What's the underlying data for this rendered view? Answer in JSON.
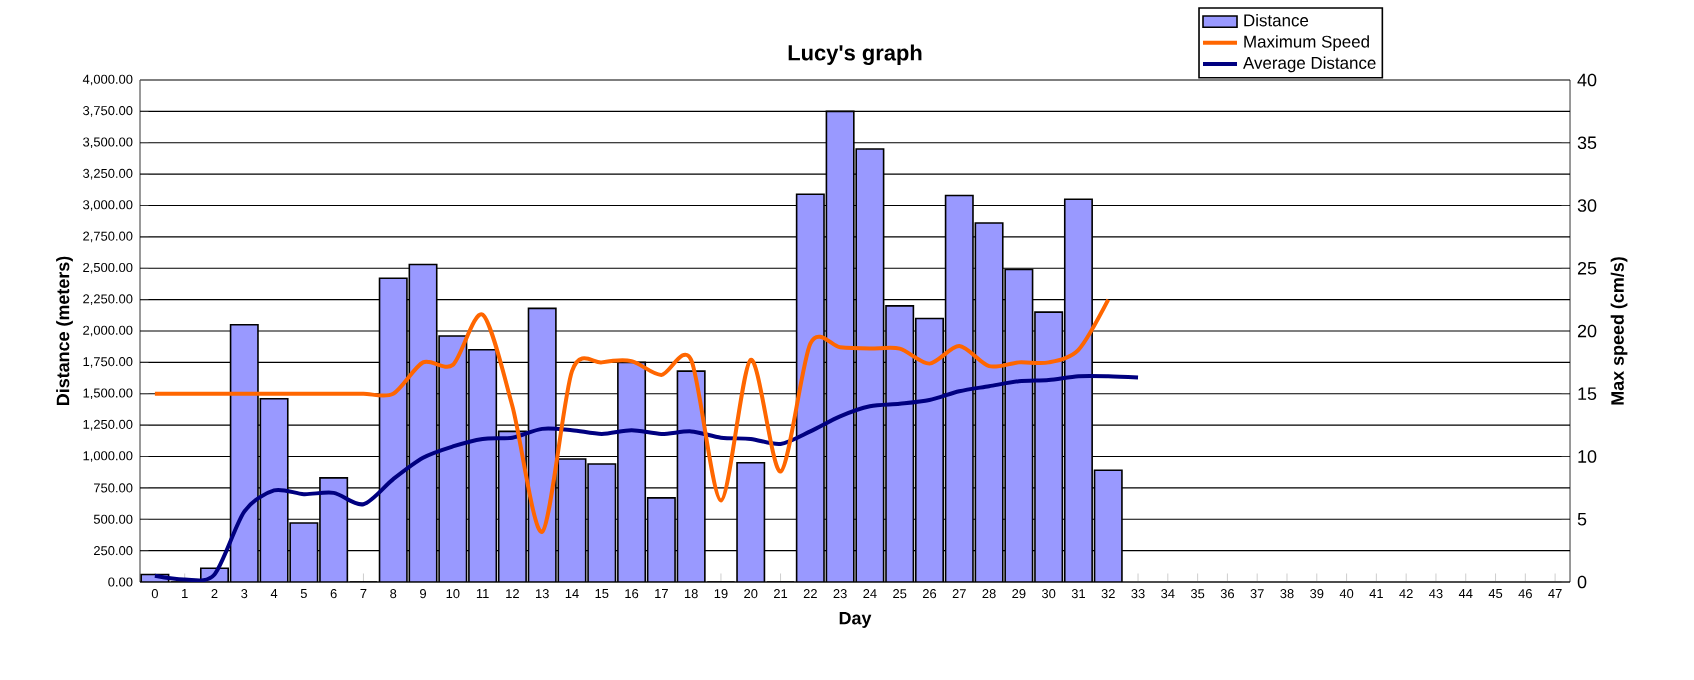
{
  "chart_data": {
    "type": "bar",
    "title": "Lucy's graph",
    "xlabel": "Day",
    "ylabel": "Distance (meters)",
    "y2label": "Max speed (cm/s)",
    "categories": [
      "0",
      "1",
      "2",
      "3",
      "4",
      "5",
      "6",
      "7",
      "8",
      "9",
      "10",
      "11",
      "12",
      "13",
      "14",
      "15",
      "16",
      "17",
      "18",
      "19",
      "20",
      "21",
      "22",
      "23",
      "24",
      "25",
      "26",
      "27",
      "28",
      "29",
      "30",
      "31",
      "32",
      "33",
      "34",
      "35",
      "36",
      "37",
      "38",
      "39",
      "40",
      "41",
      "42",
      "43",
      "44",
      "45",
      "46",
      "47"
    ],
    "series": [
      {
        "name": "Distance",
        "color": "#9999ff",
        "values": [
          60,
          0,
          110,
          2050,
          1460,
          470,
          830,
          0,
          2420,
          2530,
          1960,
          1850,
          1200,
          2180,
          980,
          940,
          1750,
          670,
          1680,
          0,
          950,
          0,
          3090,
          3750,
          3450,
          2200,
          2100,
          3080,
          2860,
          2490,
          2150,
          3050,
          890,
          null,
          null,
          null,
          null,
          null,
          null,
          null,
          null,
          null,
          null,
          null,
          null,
          null,
          null,
          null
        ]
      },
      {
        "name": "Maximum Speed",
        "type": "line",
        "axis": "y2",
        "color": "#ff6600",
        "values": [
          15,
          15,
          15,
          15,
          15,
          15,
          15,
          15,
          15,
          17.5,
          17.3,
          21.3,
          14,
          4,
          16.8,
          17.5,
          17.6,
          16.5,
          17.7,
          6.5,
          17.7,
          8.8,
          19,
          18.7,
          18.6,
          18.6,
          17.4,
          18.8,
          17.2,
          17.5,
          17.5,
          18.5,
          22.5,
          null,
          null,
          null,
          null,
          null,
          null,
          null,
          null,
          null,
          null,
          null,
          null,
          null,
          null,
          null
        ]
      },
      {
        "name": "Average Distance",
        "type": "line",
        "color": "#000080",
        "values": [
          50,
          20,
          60,
          560,
          730,
          700,
          710,
          620,
          820,
          990,
          1080,
          1140,
          1150,
          1220,
          1210,
          1180,
          1210,
          1180,
          1200,
          1150,
          1140,
          1100,
          1200,
          1320,
          1400,
          1420,
          1450,
          1520,
          1560,
          1600,
          1610,
          1640,
          1640,
          1630,
          null,
          null,
          null,
          null,
          null,
          null,
          null,
          null,
          null,
          null,
          null,
          null,
          null,
          null
        ]
      }
    ],
    "ylim": [
      0,
      4000
    ],
    "yticks": [
      {
        "value": 0,
        "label": "0.00"
      },
      {
        "value": 250,
        "label": "250.00"
      },
      {
        "value": 500,
        "label": "500.00"
      },
      {
        "value": 750,
        "label": "750.00"
      },
      {
        "value": 1000,
        "label": "1,000.00"
      },
      {
        "value": 1250,
        "label": "1,250.00"
      },
      {
        "value": 1500,
        "label": "1,500.00"
      },
      {
        "value": 1750,
        "label": "1,750.00"
      },
      {
        "value": 2000,
        "label": "2,000.00"
      },
      {
        "value": 2250,
        "label": "2,250.00"
      },
      {
        "value": 2500,
        "label": "2,500.00"
      },
      {
        "value": 2750,
        "label": "2,750.00"
      },
      {
        "value": 3000,
        "label": "3,000.00"
      },
      {
        "value": 3250,
        "label": "3,250.00"
      },
      {
        "value": 3500,
        "label": "3,500.00"
      },
      {
        "value": 3750,
        "label": "3,750.00"
      },
      {
        "value": 4000,
        "label": "4,000.00"
      }
    ],
    "y2lim": [
      0,
      40
    ],
    "y2ticks": [
      0,
      5,
      10,
      15,
      20,
      25,
      30,
      35,
      40
    ],
    "grid": "y",
    "legend": "top right"
  }
}
